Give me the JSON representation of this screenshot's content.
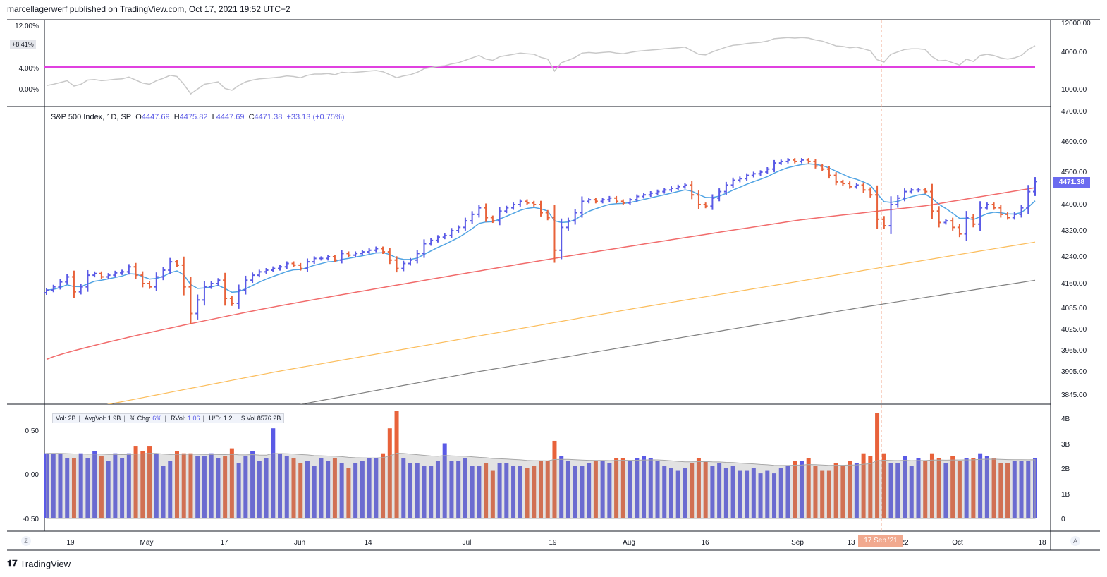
{
  "header": {
    "publisher_line": "marcellagerwerf published on TradingView.com, Oct 17, 2021 19:52 UTC+2"
  },
  "brand": {
    "name": "TradingView"
  },
  "legend": {
    "symbol": "S&P 500 Index, 1D, SP",
    "o_label": "O",
    "o": "4447.69",
    "h_label": "H",
    "h": "4475.82",
    "l_label": "L",
    "l": "4447.69",
    "c_label": "C",
    "c": "4471.38",
    "change": "+33.13 (+0.75%)"
  },
  "last_price_tag": "4471.38",
  "volume_box": {
    "vol_label": "Vol:",
    "vol": "2B",
    "avgvol_label": "AvgVol:",
    "avgvol": "1.9B",
    "chg_label": "% Chg:",
    "chg": "6%",
    "rvol_label": "RVol:",
    "rvol": "1.06",
    "ud_label": "U/D:",
    "ud": "1.2",
    "dvol_label": "$ Vol",
    "dvol": "8576.2B"
  },
  "top_pane": {
    "left_ticks": [
      "12.00%",
      "4.00%",
      "0.00%"
    ],
    "pct_tag": "+8.41%",
    "right_ticks": [
      "12000.00",
      "4000.00",
      "1000.00"
    ]
  },
  "price_axis_ticks": [
    "4700.00",
    "4600.00",
    "4500.00",
    "4400.00",
    "4320.00",
    "4240.00",
    "4160.00",
    "4085.00",
    "4025.00",
    "3965.00",
    "3905.00",
    "3845.00"
  ],
  "volume_pane": {
    "left_ticks": [
      "0.50",
      "0.00",
      "-0.50"
    ],
    "right_ticks": [
      "4B",
      "3B",
      "2B",
      "1B",
      "0"
    ]
  },
  "time_axis": [
    "19",
    "May",
    "17",
    "Jun",
    "14",
    "Jul",
    "19",
    "Aug",
    "16",
    "Sep",
    "13",
    "22",
    "Oct",
    "18"
  ],
  "crosshair_date": "17 Sep '21",
  "corner_left": "Z",
  "corner_right": "A",
  "colors": {
    "up": "#5a5ae6",
    "down": "#e8623a",
    "ema_fast": "#4fa3e3",
    "ma50": "#f16b6b",
    "ma100": "#fbbd5c",
    "ma200": "#808080",
    "rs_line": "#c8c8c8",
    "rs_ref": "#e040e0"
  },
  "chart_data": {
    "type": "ohlc-bar",
    "price_axis_labels": [
      "3845",
      "3905",
      "3965",
      "4025",
      "4085",
      "4160",
      "4240",
      "4320",
      "4400",
      "4500",
      "4600",
      "4700"
    ],
    "close_series_estimated": [
      4140,
      4150,
      4165,
      4180,
      4135,
      4150,
      4185,
      4190,
      4180,
      4185,
      4192,
      4195,
      4210,
      4185,
      4160,
      4150,
      4180,
      4200,
      4225,
      4215,
      4150,
      4070,
      4110,
      4150,
      4160,
      4170,
      4115,
      4100,
      4140,
      4170,
      4185,
      4195,
      4200,
      4205,
      4210,
      4220,
      4215,
      4205,
      4225,
      4235,
      4235,
      4240,
      4230,
      4250,
      4245,
      4250,
      4255,
      4260,
      4265,
      4255,
      4230,
      4205,
      4220,
      4230,
      4250,
      4280,
      4290,
      4300,
      4305,
      4320,
      4330,
      4350,
      4370,
      4390,
      4360,
      4350,
      4380,
      4390,
      4400,
      4410,
      4405,
      4400,
      4375,
      4360,
      4260,
      4330,
      4350,
      4375,
      4410,
      4415,
      4410,
      4415,
      4420,
      4410,
      4405,
      4415,
      4425,
      4430,
      4435,
      4440,
      4445,
      4450,
      4455,
      4460,
      4430,
      4400,
      4395,
      4420,
      4440,
      4460,
      4475,
      4480,
      4490,
      4495,
      4500,
      4510,
      4530,
      4535,
      4540,
      4535,
      4540,
      4535,
      4520,
      4510,
      4490,
      4470,
      4465,
      4455,
      4460,
      4445,
      4430,
      4355,
      4335,
      4400,
      4420,
      4440,
      4445,
      4445,
      4440,
      4380,
      4345,
      4350,
      4330,
      4310,
      4360,
      4340,
      4390,
      4400,
      4390,
      4370,
      4360,
      4370,
      4390,
      4440,
      4471
    ],
    "volume_bn_estimated": [
      2.6,
      2.6,
      2.6,
      2.4,
      2.4,
      2.6,
      2.4,
      2.7,
      2.5,
      2.3,
      2.6,
      2.4,
      2.6,
      2.9,
      2.7,
      2.9,
      2.6,
      2.1,
      2.3,
      2.7,
      2.6,
      2.6,
      2.5,
      2.5,
      2.6,
      2.4,
      2.5,
      2.8,
      2.2,
      2.5,
      2.7,
      2.3,
      2.4,
      3.6,
      2.6,
      2.5,
      2.4,
      2.2,
      2.3,
      2.1,
      2.4,
      2.3,
      2.4,
      2.2,
      2.0,
      2.2,
      2.3,
      2.4,
      2.4,
      2.6,
      3.6,
      4.3,
      2.4,
      2.2,
      2.2,
      2.1,
      2.1,
      2.3,
      3.0,
      2.3,
      2.3,
      2.4,
      2.1,
      2.1,
      2.2,
      1.9,
      2.2,
      2.2,
      2.1,
      2.1,
      2.0,
      2.1,
      2.3,
      2.3,
      3.1,
      2.5,
      2.3,
      2.1,
      2.1,
      2.2,
      2.3,
      2.3,
      2.2,
      2.4,
      2.4,
      2.3,
      2.4,
      2.5,
      2.4,
      2.3,
      2.1,
      2.0,
      1.9,
      2.0,
      2.2,
      2.4,
      2.3,
      2.1,
      2.2,
      2.0,
      2.1,
      1.9,
      1.9,
      2.0,
      1.8,
      1.9,
      1.8,
      2.0,
      2.1,
      2.3,
      2.3,
      2.4,
      2.1,
      1.9,
      1.9,
      2.2,
      2.1,
      2.3,
      2.2,
      2.6,
      2.5,
      4.2,
      2.6,
      2.2,
      2.2,
      2.5,
      2.1,
      2.4,
      2.3,
      2.6,
      2.4,
      2.2,
      2.5,
      2.3,
      2.4,
      2.4,
      2.6,
      2.5,
      2.4,
      2.2,
      2.2,
      2.3,
      2.3,
      2.3,
      2.4
    ],
    "moving_averages": [
      "EMA fast (blue)",
      "MA50 (red)",
      "MA100 (orange)",
      "MA200 (grey)"
    ],
    "rs_reference_line": "+8.41%",
    "x_range": [
      "Apr 2021",
      "Oct 18 2021"
    ],
    "y_range": [
      3845,
      4700
    ],
    "grid": false
  }
}
